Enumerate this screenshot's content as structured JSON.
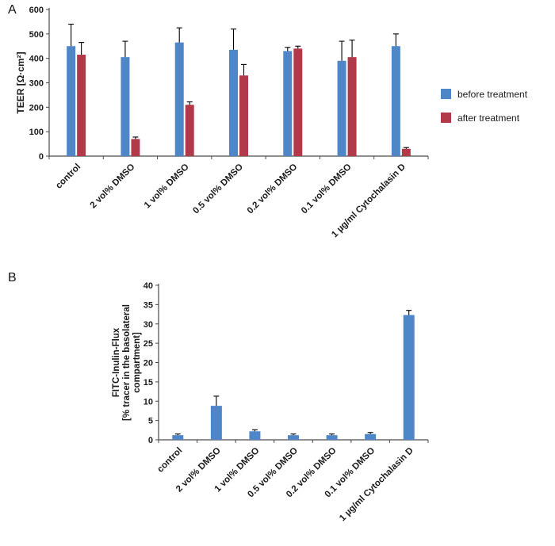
{
  "figure": {
    "panel_a_label": "A",
    "panel_b_label": "B"
  },
  "colors": {
    "before": "#4f86c8",
    "after": "#b2394a",
    "axis": "#4a4a4a",
    "text": "#1a1a1a",
    "error": "#000000",
    "background": "#ffffff"
  },
  "chart_data": [
    {
      "type": "bar",
      "panel": "A",
      "title": "",
      "ylabel": "TEER [Ω·cm²]",
      "ylabel_lines": [
        "TEER [Ω·cm²]"
      ],
      "ylim": [
        0,
        600
      ],
      "ytick_step": 100,
      "grid": false,
      "legend_position": "right",
      "categories": [
        "control",
        "2 vol% DMSO",
        "1 vol% DMSO",
        "0.5 vol% DMSO",
        "0.2 vol% DMSO",
        "0.1 vol% DMSO",
        "1 µg/ml Cytochalasin D"
      ],
      "series": [
        {
          "name": "before treatment",
          "color_key": "before",
          "values": [
            450,
            405,
            465,
            435,
            430,
            390,
            450
          ],
          "errors": [
            90,
            65,
            60,
            85,
            15,
            80,
            50
          ]
        },
        {
          "name": "after treatment",
          "color_key": "after",
          "values": [
            415,
            70,
            210,
            330,
            440,
            405,
            30
          ],
          "errors": [
            50,
            8,
            12,
            45,
            10,
            70,
            5
          ]
        }
      ]
    },
    {
      "type": "bar",
      "panel": "B",
      "title": "",
      "ylabel": "FITC-Inulin-Flux [% tracer in the basolateral compartment]",
      "ylabel_lines": [
        "FITC-Inulin-Flux",
        "[% tracer in the basolateral",
        "compartment]"
      ],
      "ylim": [
        0,
        40
      ],
      "ytick_step": 5,
      "grid": false,
      "legend_position": "none",
      "categories": [
        "control",
        "2 vol% DMSO",
        "1 vol% DMSO",
        "0.5 vol% DMSO",
        "0.2 vol% DMSO",
        "0.1 vol% DMSO",
        "1 µg/ml Cytochalasin D"
      ],
      "series": [
        {
          "name": "FITC-Inulin-Flux",
          "color_key": "before",
          "values": [
            1.2,
            8.8,
            2.2,
            1.2,
            1.2,
            1.5,
            32.3
          ],
          "errors": [
            0.3,
            2.5,
            0.4,
            0.3,
            0.3,
            0.4,
            1.2
          ]
        }
      ]
    }
  ]
}
